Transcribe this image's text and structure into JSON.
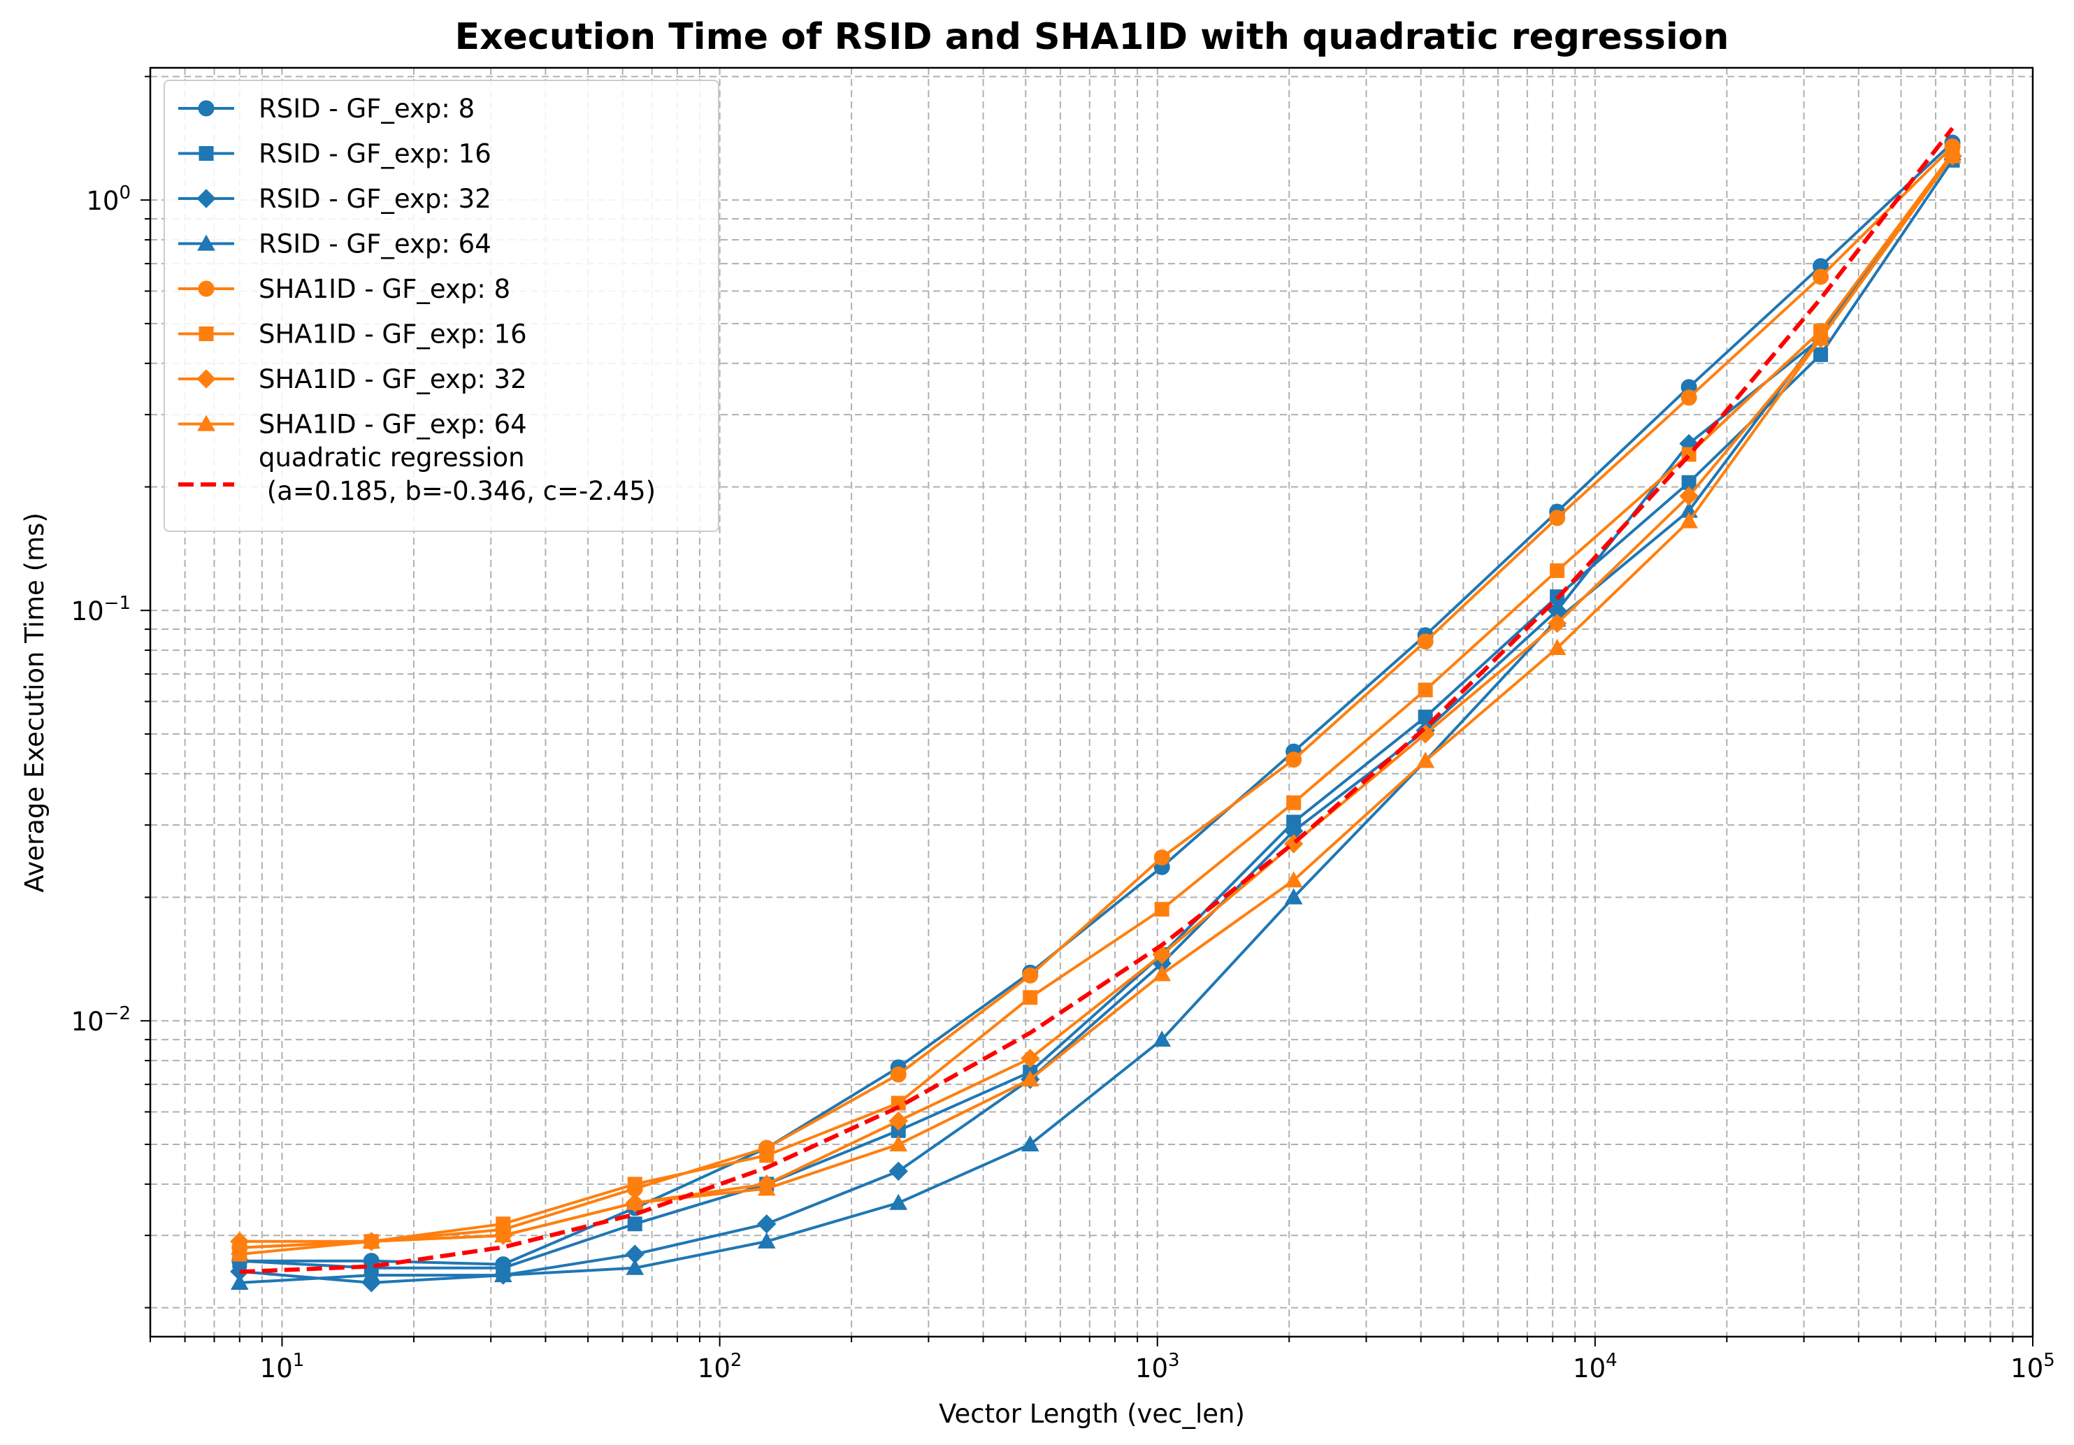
{
  "chart_data": {
    "type": "line",
    "title": "Execution Time of RSID and SHA1ID with quadratic regression",
    "xlabel": "Vector Length (vec_len)",
    "ylabel": "Average Execution Time (ms)",
    "xscale": "log",
    "yscale": "log",
    "xlim": [
      5,
      100000
    ],
    "ylim": [
      0.0017,
      2.1
    ],
    "grid": true,
    "legend_position": "upper-left",
    "x_ticks": [
      {
        "value": 10,
        "base": "10",
        "exp": "1"
      },
      {
        "value": 100,
        "base": "10",
        "exp": "2"
      },
      {
        "value": 1000,
        "base": "10",
        "exp": "3"
      },
      {
        "value": 10000,
        "base": "10",
        "exp": "4"
      },
      {
        "value": 100000,
        "base": "10",
        "exp": "5"
      }
    ],
    "y_ticks": [
      {
        "value": 0.01,
        "base": "10",
        "exp": "−2"
      },
      {
        "value": 0.1,
        "base": "10",
        "exp": "−1"
      },
      {
        "value": 1,
        "base": "10",
        "exp": "0"
      }
    ],
    "x": [
      8,
      16,
      32,
      64,
      128,
      256,
      512,
      1024,
      2048,
      4096,
      8192,
      16384,
      32768,
      65536
    ],
    "series": [
      {
        "name": "RSID - GF_exp: 8",
        "color": "#1f77b4",
        "marker": "circle",
        "values": [
          0.0026,
          0.0026,
          0.00255,
          0.0035,
          0.0049,
          0.0077,
          0.0131,
          0.0237,
          0.0453,
          0.087,
          0.174,
          0.35,
          0.69,
          1.38
        ]
      },
      {
        "name": "RSID - GF_exp: 16",
        "color": "#1f77b4",
        "marker": "square",
        "values": [
          0.0026,
          0.0025,
          0.0025,
          0.0032,
          0.004,
          0.0054,
          0.0075,
          0.0145,
          0.0305,
          0.055,
          0.108,
          0.205,
          0.42,
          1.25
        ]
      },
      {
        "name": "RSID - GF_exp: 32",
        "color": "#1f77b4",
        "marker": "diamond",
        "values": [
          0.00245,
          0.0023,
          0.0024,
          0.0027,
          0.0032,
          0.0043,
          0.0072,
          0.0138,
          0.029,
          0.051,
          0.1,
          0.255,
          0.46,
          1.28
        ]
      },
      {
        "name": "RSID - GF_exp: 64",
        "color": "#1f77b4",
        "marker": "triangle",
        "values": [
          0.0023,
          0.0024,
          0.0024,
          0.0025,
          0.0029,
          0.0036,
          0.005,
          0.009,
          0.02,
          0.043,
          0.095,
          0.175,
          0.47,
          1.3
        ]
      },
      {
        "name": "SHA1ID - GF_exp: 8",
        "color": "#ff7f0e",
        "marker": "circle",
        "values": [
          0.0028,
          0.0029,
          0.0031,
          0.0039,
          0.0049,
          0.0074,
          0.0129,
          0.025,
          0.0433,
          0.084,
          0.168,
          0.33,
          0.65,
          1.35
        ]
      },
      {
        "name": "SHA1ID - GF_exp: 16",
        "color": "#ff7f0e",
        "marker": "square",
        "values": [
          0.0027,
          0.0029,
          0.0032,
          0.004,
          0.0047,
          0.0063,
          0.0114,
          0.0187,
          0.034,
          0.064,
          0.125,
          0.24,
          0.48,
          1.3
        ]
      },
      {
        "name": "SHA1ID - GF_exp: 32",
        "color": "#ff7f0e",
        "marker": "diamond",
        "values": [
          0.0029,
          0.0029,
          0.003,
          0.0036,
          0.004,
          0.0057,
          0.0081,
          0.0145,
          0.027,
          0.05,
          0.093,
          0.19,
          0.46,
          1.28
        ]
      },
      {
        "name": "SHA1ID - GF_exp: 64",
        "color": "#ff7f0e",
        "marker": "triangle",
        "values": [
          0.0028,
          0.0029,
          0.003,
          0.0036,
          0.0039,
          0.005,
          0.0072,
          0.013,
          0.022,
          0.043,
          0.081,
          0.165,
          0.46,
          1.28
        ]
      }
    ],
    "regression": {
      "name": "quadratic regression\n (a=0.185, b=-0.346, c=-2.45)",
      "legend_line1": "quadratic regression",
      "legend_line2": " (a=0.185, b=-0.346, c=-2.45)",
      "color": "#ff0000",
      "style": "dashed",
      "a": 0.185,
      "b": -0.346,
      "c": -2.45
    }
  }
}
